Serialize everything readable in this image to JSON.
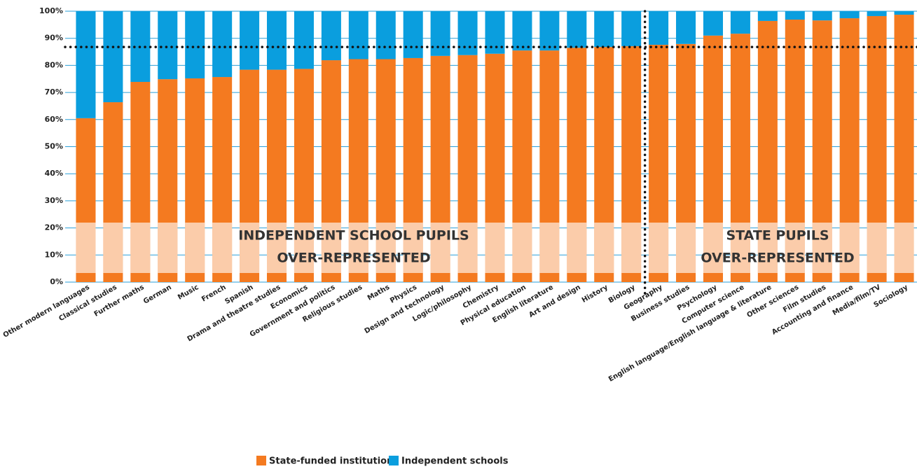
{
  "chart_data": {
    "type": "stacked_bar",
    "categories": [
      "Other modern languages",
      "Classical studies",
      "Further maths",
      "German",
      "Music",
      "French",
      "Spanish",
      "Drama and theatre studies",
      "Economics",
      "Government and politics",
      "Religious studies",
      "Maths",
      "Physics",
      "Design and technology",
      "Logic/philosophy",
      "Chemistry",
      "Physical education",
      "English literature",
      "Art and design",
      "History",
      "Biology",
      "Geography",
      "Business studies",
      "Psychology",
      "Computer science",
      "English language/English language & literature",
      "Other sciences",
      "Film studies",
      "Accounting  and  finance",
      "Media/film/TV",
      "Sociology"
    ],
    "series": [
      {
        "name": "State-funded institutions",
        "color": "#f47a20",
        "values": [
          60.5,
          66.4,
          73.9,
          74.9,
          75.2,
          75.7,
          78.4,
          78.4,
          78.7,
          81.9,
          82.3,
          82.3,
          82.7,
          83.5,
          83.8,
          84.3,
          85.5,
          85.5,
          86.5,
          86.8,
          87.1,
          87.6,
          87.9,
          91.0,
          91.7,
          96.4,
          96.9,
          96.6,
          97.4,
          98.2,
          98.7
        ]
      },
      {
        "name": "Independent schools",
        "color": "#0a9ede",
        "values": [
          39.5,
          33.6,
          26.1,
          25.1,
          24.8,
          24.3,
          21.6,
          21.6,
          21.3,
          18.1,
          17.7,
          17.7,
          17.3,
          16.5,
          16.2,
          15.7,
          14.5,
          14.5,
          13.5,
          13.2,
          12.9,
          12.4,
          12.1,
          9.0,
          8.3,
          3.6,
          3.1,
          3.4,
          2.6,
          1.8,
          1.3
        ]
      }
    ],
    "ylim": [
      0,
      100
    ],
    "yticks": [
      {
        "value": 0,
        "label": "0%"
      },
      {
        "value": 10,
        "label": "10%"
      },
      {
        "value": 20,
        "label": "20%"
      },
      {
        "value": 30,
        "label": "30%"
      },
      {
        "value": 40,
        "label": "40%"
      },
      {
        "value": 50,
        "label": "50%"
      },
      {
        "value": 60,
        "label": "60%"
      },
      {
        "value": 70,
        "label": "70%"
      },
      {
        "value": 80,
        "label": "80%"
      },
      {
        "value": 90,
        "label": "90%"
      },
      {
        "value": 100,
        "label": "100%"
      }
    ],
    "grid": true,
    "reference_value": 86.8,
    "annotations": [
      {
        "lines": [
          "INDEPENDENT SCHOOL PUPILS",
          "OVER-REPRESENTED"
        ]
      },
      {
        "lines": [
          "STATE PUPILS",
          "OVER-REPRESENTED"
        ]
      }
    ]
  }
}
